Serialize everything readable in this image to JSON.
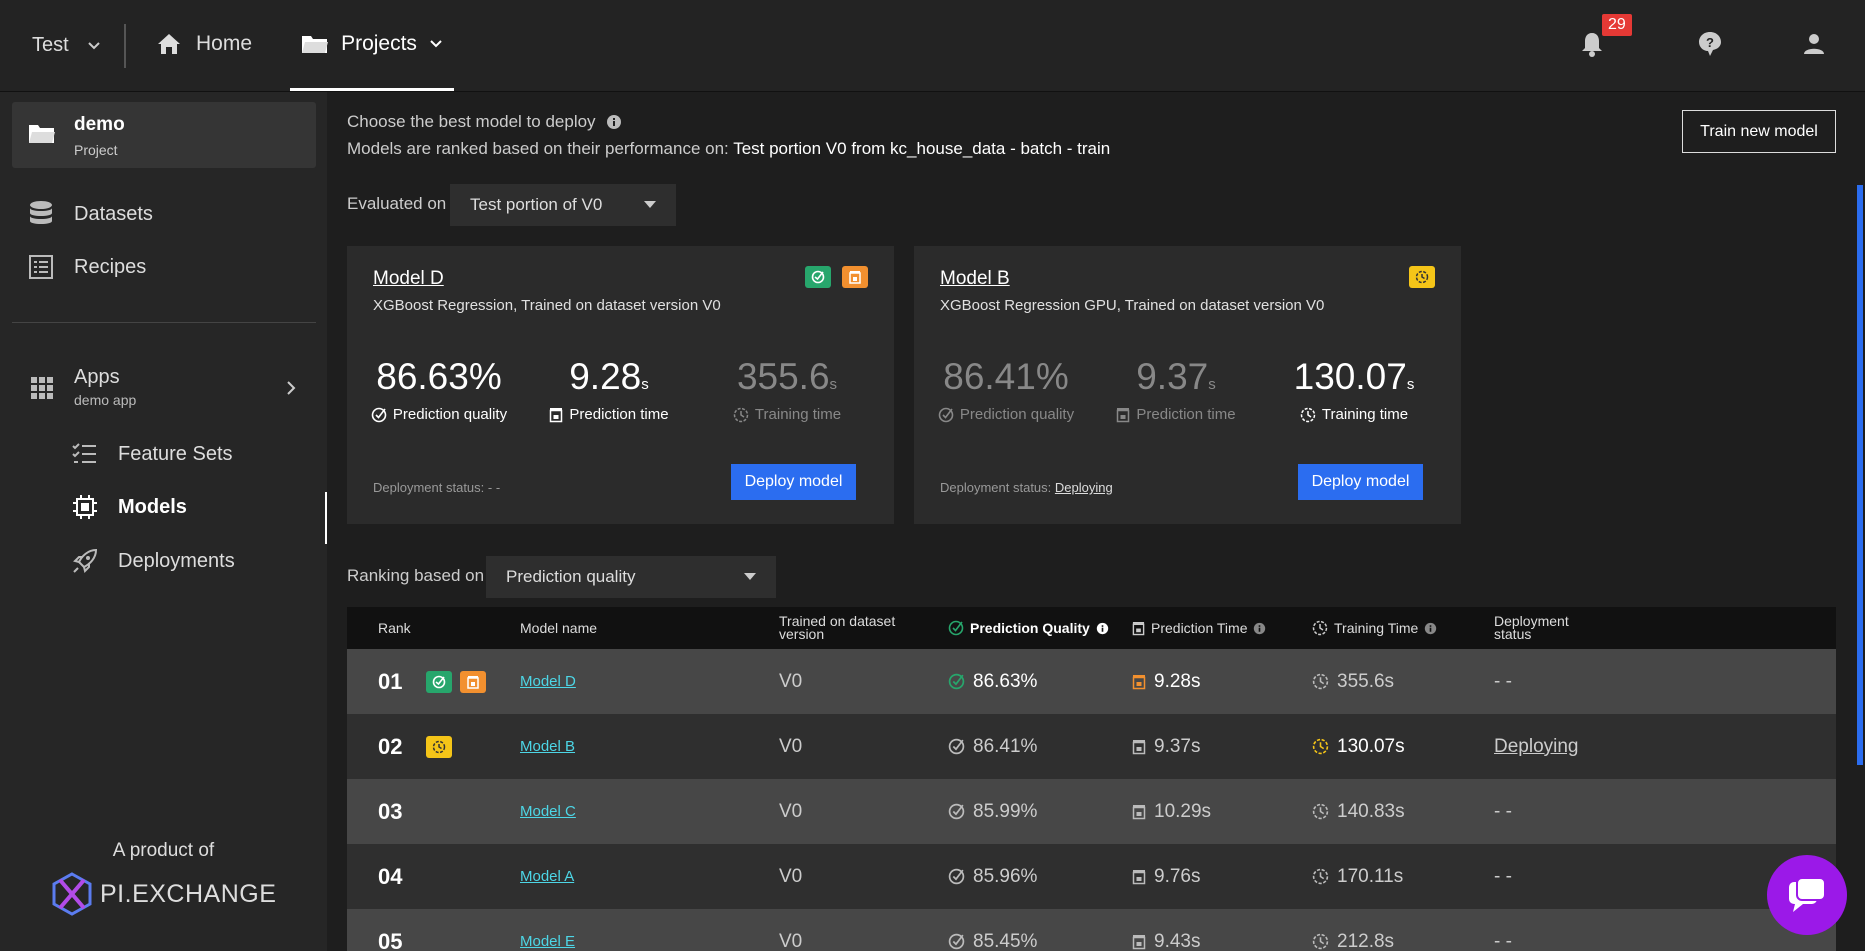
{
  "topbar": {
    "workspace": "Test",
    "home_label": "Home",
    "projects_label": "Projects",
    "notification_count": "29"
  },
  "sidebar": {
    "project_name": "demo",
    "project_type": "Project",
    "datasets_label": "Datasets",
    "recipes_label": "Recipes",
    "apps_label": "Apps",
    "apps_sub": "demo app",
    "feature_sets_label": "Feature Sets",
    "models_label": "Models",
    "deployments_label": "Deployments",
    "footer_text": "A product of",
    "logo_text": "PI.EXCHANGE"
  },
  "main": {
    "intro_line1": "Choose the best model to deploy",
    "intro_line2_prefix": "Models are ranked based on their performance on: ",
    "intro_line2_value": "Test portion V0 from kc_house_data - batch - train",
    "train_button": "Train new model",
    "evaluated_label": "Evaluated on",
    "evaluated_value": "Test portion of V0",
    "ranking_label": "Ranking based on",
    "ranking_value": "Prediction quality"
  },
  "cards": [
    {
      "name": "Model D",
      "desc": "XGBoost Regression, Trained on dataset version V0",
      "quality": "86.63%",
      "pred_time": "9.28",
      "train_time": "355.6",
      "unit": "s",
      "quality_label": "Prediction quality",
      "pred_label": "Prediction time",
      "train_label": "Training time",
      "status_label": "Deployment status: ",
      "status_value": "- -",
      "deploy_button": "Deploy model"
    },
    {
      "name": "Model B",
      "desc": "XGBoost Regression GPU, Trained on dataset version V0",
      "quality": "86.41%",
      "pred_time": "9.37",
      "train_time": "130.07",
      "unit": "s",
      "quality_label": "Prediction quality",
      "pred_label": "Prediction time",
      "train_label": "Training time",
      "status_label": "Deployment status: ",
      "status_value": "Deploying",
      "deploy_button": "Deploy model"
    }
  ],
  "table": {
    "headers": {
      "rank": "Rank",
      "model_name": "Model name",
      "trained_on": "Trained on dataset version",
      "quality": "Prediction Quality",
      "pred_time": "Prediction Time",
      "train_time": "Training Time",
      "status": "Deployment status"
    },
    "rows": [
      {
        "rank": "01",
        "name": "Model D",
        "version": "V0",
        "quality": "86.63%",
        "pred_time": "9.28s",
        "train_time": "355.6s",
        "status": "- -"
      },
      {
        "rank": "02",
        "name": "Model B",
        "version": "V0",
        "quality": "86.41%",
        "pred_time": "9.37s",
        "train_time": "130.07s",
        "status": "Deploying"
      },
      {
        "rank": "03",
        "name": "Model C",
        "version": "V0",
        "quality": "85.99%",
        "pred_time": "10.29s",
        "train_time": "140.83s",
        "status": "- -"
      },
      {
        "rank": "04",
        "name": "Model A",
        "version": "V0",
        "quality": "85.96%",
        "pred_time": "9.76s",
        "train_time": "170.11s",
        "status": "- -"
      },
      {
        "rank": "05",
        "name": "Model E",
        "version": "V0",
        "quality": "85.45%",
        "pred_time": "9.43s",
        "train_time": "212.8s",
        "status": "- -"
      }
    ]
  },
  "colors": {
    "accent_blue": "#2b6df0",
    "quality_green": "#27a66c",
    "time_orange": "#f2902f",
    "training_yellow": "#f5c518",
    "chat_purple": "#9b19e8",
    "link_cyan": "#4dd6e6",
    "badge_red": "#e53935"
  },
  "icons": [
    "chevron-down-icon",
    "home-icon",
    "folder-icon",
    "bell-icon",
    "help-icon",
    "user-icon",
    "database-icon",
    "recipe-icon",
    "apps-grid-icon",
    "chevron-right-icon",
    "checklist-icon",
    "chip-icon",
    "rocket-icon",
    "info-icon",
    "quality-icon",
    "timer-icon",
    "clock-icon",
    "chat-icon"
  ]
}
